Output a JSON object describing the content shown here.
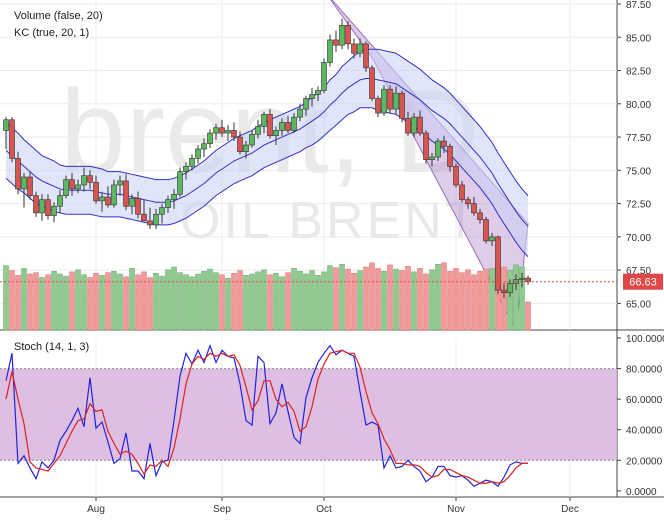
{
  "chart_data": [
    {
      "type": "candlestick",
      "symbol": "brent",
      "watermark": "brent, D",
      "watermark_sub": "OIL BRENT",
      "indicators": [
        "Volume (false, 20)",
        "KC (true, 20, 1)"
      ],
      "x_ticks": [
        "Aug",
        "Sep",
        "Oct",
        "Nov",
        "Dec"
      ],
      "y_ticks": [
        "65.00",
        "67.50",
        "70.00",
        "72.50",
        "75.00",
        "77.50",
        "80.00",
        "82.50",
        "85.00",
        "87.50"
      ],
      "ylim": [
        63.0,
        87.8
      ],
      "last_price": "66.63",
      "colors": {
        "up": "#5cb85c",
        "down": "#d9534f",
        "kc_line": "#3030c8",
        "kc_fill": "#c9d0f4",
        "channel": "#b58fce",
        "volume_up": "#8fca8f",
        "volume_down": "#f29a9a",
        "price_tag": "#e04848"
      },
      "candles": [
        [
          78.0,
          79.0,
          76.6,
          78.8
        ],
        [
          78.8,
          79.0,
          75.6,
          75.9
        ],
        [
          75.9,
          76.4,
          73.2,
          73.6
        ],
        [
          73.6,
          74.8,
          72.2,
          74.5
        ],
        [
          74.5,
          74.9,
          72.8,
          73.1
        ],
        [
          73.1,
          73.4,
          71.5,
          71.8
        ],
        [
          71.8,
          73.2,
          71.2,
          72.8
        ],
        [
          72.8,
          73.2,
          71.3,
          71.6
        ],
        [
          71.6,
          72.6,
          71.1,
          72.3
        ],
        [
          72.3,
          73.5,
          71.8,
          73.1
        ],
        [
          73.1,
          74.6,
          72.9,
          74.3
        ],
        [
          74.3,
          74.8,
          73.1,
          73.6
        ],
        [
          73.6,
          74.3,
          73.3,
          73.9
        ],
        [
          73.9,
          75.2,
          73.4,
          74.6
        ],
        [
          74.6,
          75.0,
          73.6,
          74.1
        ],
        [
          74.1,
          74.6,
          72.5,
          72.7
        ],
        [
          72.7,
          73.4,
          71.9,
          73.0
        ],
        [
          73.0,
          73.8,
          72.2,
          72.4
        ],
        [
          72.4,
          74.3,
          72.2,
          73.9
        ],
        [
          73.9,
          74.6,
          73.1,
          74.2
        ],
        [
          74.2,
          74.7,
          72.0,
          72.3
        ],
        [
          72.3,
          73.2,
          71.7,
          72.9
        ],
        [
          72.9,
          73.4,
          71.4,
          71.7
        ],
        [
          71.7,
          72.8,
          71.2,
          71.2
        ],
        [
          71.2,
          72.2,
          70.6,
          70.9
        ],
        [
          70.9,
          72.1,
          70.6,
          71.7
        ],
        [
          71.7,
          72.5,
          71.0,
          72.2
        ],
        [
          72.2,
          73.1,
          71.8,
          72.8
        ],
        [
          72.8,
          73.6,
          72.1,
          73.2
        ],
        [
          73.2,
          75.2,
          73.0,
          74.9
        ],
        [
          74.9,
          75.6,
          74.3,
          75.3
        ],
        [
          75.3,
          76.2,
          75.0,
          75.9
        ],
        [
          75.9,
          76.9,
          75.5,
          76.6
        ],
        [
          76.6,
          77.4,
          76.0,
          77.0
        ],
        [
          77.0,
          78.1,
          76.7,
          77.8
        ],
        [
          77.8,
          78.5,
          77.3,
          78.2
        ],
        [
          78.2,
          78.8,
          77.5,
          77.8
        ],
        [
          77.8,
          78.4,
          77.2,
          78.0
        ],
        [
          78.0,
          78.6,
          77.2,
          77.5
        ],
        [
          77.5,
          77.9,
          76.2,
          76.4
        ],
        [
          76.4,
          77.2,
          75.9,
          76.9
        ],
        [
          76.9,
          78.0,
          76.7,
          77.7
        ],
        [
          77.7,
          78.8,
          77.4,
          78.3
        ],
        [
          78.3,
          79.4,
          77.8,
          79.2
        ],
        [
          79.2,
          79.6,
          77.4,
          77.6
        ],
        [
          77.6,
          78.3,
          76.9,
          78.0
        ],
        [
          78.0,
          78.9,
          77.6,
          78.6
        ],
        [
          78.6,
          79.1,
          77.8,
          78.0
        ],
        [
          78.0,
          79.3,
          77.8,
          79.0
        ],
        [
          79.0,
          80.0,
          78.7,
          79.6
        ],
        [
          79.6,
          80.6,
          79.1,
          80.4
        ],
        [
          80.4,
          81.2,
          79.8,
          80.7
        ],
        [
          80.7,
          81.3,
          80.2,
          81.0
        ],
        [
          81.0,
          83.4,
          80.8,
          83.1
        ],
        [
          83.1,
          85.2,
          82.8,
          84.8
        ],
        [
          84.8,
          85.5,
          83.9,
          84.4
        ],
        [
          84.4,
          86.4,
          84.1,
          85.9
        ],
        [
          85.9,
          86.2,
          84.1,
          84.5
        ],
        [
          84.5,
          84.9,
          83.4,
          83.8
        ],
        [
          83.8,
          84.9,
          83.5,
          84.5
        ],
        [
          84.5,
          84.7,
          82.4,
          82.7
        ],
        [
          82.7,
          82.9,
          80.2,
          80.4
        ],
        [
          80.4,
          80.6,
          79.0,
          79.3
        ],
        [
          79.3,
          81.4,
          79.1,
          81.1
        ],
        [
          81.1,
          81.4,
          79.3,
          79.6
        ],
        [
          79.6,
          81.3,
          79.2,
          80.8
        ],
        [
          80.8,
          81.0,
          78.6,
          78.9
        ],
        [
          78.9,
          79.4,
          77.6,
          77.8
        ],
        [
          77.8,
          79.3,
          77.5,
          79.0
        ],
        [
          79.0,
          79.5,
          77.6,
          77.8
        ],
        [
          77.8,
          78.0,
          75.5,
          75.8
        ],
        [
          75.8,
          76.3,
          75.3,
          76.0
        ],
        [
          76.0,
          77.4,
          75.7,
          77.2
        ],
        [
          77.2,
          77.6,
          76.3,
          76.8
        ],
        [
          76.8,
          77.0,
          74.9,
          75.3
        ],
        [
          75.3,
          75.5,
          73.7,
          73.9
        ],
        [
          73.9,
          74.2,
          72.6,
          72.8
        ],
        [
          72.8,
          73.0,
          72.1,
          72.5
        ],
        [
          72.5,
          73.0,
          71.6,
          71.8
        ],
        [
          71.8,
          72.1,
          71.0,
          71.3
        ],
        [
          71.3,
          71.5,
          69.5,
          69.7
        ],
        [
          69.7,
          70.3,
          69.3,
          70.0
        ],
        [
          70.0,
          70.1,
          65.7,
          66.0
        ],
        [
          66.0,
          66.5,
          65.4,
          65.8
        ],
        [
          65.8,
          66.8,
          65.5,
          66.5
        ],
        [
          66.5,
          67.2,
          66.0,
          66.8
        ],
        [
          66.8,
          67.3,
          66.2,
          66.9
        ],
        [
          66.9,
          67.1,
          66.4,
          66.63
        ]
      ],
      "volume": [
        92,
        85,
        78,
        88,
        80,
        82,
        75,
        79,
        84,
        80,
        77,
        83,
        86,
        79,
        75,
        81,
        78,
        82,
        84,
        80,
        76,
        88,
        79,
        83,
        75,
        81,
        77,
        86,
        90,
        82,
        79,
        76,
        80,
        84,
        87,
        82,
        79,
        74,
        81,
        85,
        78,
        80,
        83,
        86,
        79,
        81,
        76,
        82,
        88,
        84,
        80,
        85,
        78,
        83,
        92,
        89,
        94,
        87,
        81,
        85,
        90,
        96,
        88,
        84,
        93,
        87,
        85,
        91,
        83,
        88,
        80,
        86,
        94,
        96,
        84,
        88,
        82,
        86,
        79,
        84,
        87,
        88,
        98,
        90,
        85,
        93,
        90,
        40
      ],
      "kc_mid": [
        76.5,
        76.1,
        75.7,
        75.3,
        74.9,
        74.5,
        74.2,
        74.0,
        73.8,
        73.6,
        73.5,
        73.5,
        73.5,
        73.5,
        73.5,
        73.4,
        73.3,
        73.2,
        73.2,
        73.2,
        73.1,
        73.0,
        72.9,
        72.8,
        72.7,
        72.6,
        72.6,
        72.6,
        72.7,
        72.9,
        73.1,
        73.4,
        73.7,
        74.0,
        74.4,
        74.8,
        75.1,
        75.4,
        75.7,
        75.9,
        76.1,
        76.3,
        76.6,
        76.9,
        77.1,
        77.3,
        77.5,
        77.7,
        77.9,
        78.1,
        78.4,
        78.7,
        79.0,
        79.4,
        79.9,
        80.3,
        80.8,
        81.2,
        81.5,
        81.8,
        81.9,
        81.9,
        81.8,
        81.7,
        81.6,
        81.5,
        81.2,
        80.9,
        80.6,
        80.3,
        79.9,
        79.5,
        79.2,
        78.9,
        78.5,
        78.0,
        77.5,
        77.0,
        76.5,
        76.0,
        75.4,
        74.8,
        74.0,
        73.3,
        72.6,
        71.9,
        71.3,
        70.8
      ],
      "kc_width": [
        2.1,
        2.1,
        2.1,
        2.0,
        2.0,
        2.0,
        1.9,
        1.9,
        1.9,
        1.8,
        1.8,
        1.8,
        1.8,
        1.8,
        1.8,
        1.8,
        1.8,
        1.7,
        1.7,
        1.7,
        1.7,
        1.7,
        1.7,
        1.7,
        1.7,
        1.7,
        1.7,
        1.7,
        1.7,
        1.7,
        1.7,
        1.7,
        1.7,
        1.7,
        1.7,
        1.7,
        1.7,
        1.7,
        1.7,
        1.7,
        1.7,
        1.7,
        1.7,
        1.7,
        1.7,
        1.7,
        1.7,
        1.7,
        1.7,
        1.7,
        1.7,
        1.8,
        1.8,
        1.8,
        1.9,
        1.9,
        2.0,
        2.0,
        2.1,
        2.1,
        2.2,
        2.2,
        2.3,
        2.3,
        2.3,
        2.3,
        2.3,
        2.3,
        2.3,
        2.3,
        2.3,
        2.3,
        2.3,
        2.3,
        2.3,
        2.3,
        2.3,
        2.3,
        2.3,
        2.3,
        2.3,
        2.3,
        2.3,
        2.3,
        2.3,
        2.3,
        2.3,
        2.3
      ],
      "channel": {
        "upper": [
          [
            53,
            88.5
          ],
          [
            87,
            71.0
          ]
        ],
        "lower": [
          [
            61,
            83.5
          ],
          [
            85,
            63.0
          ]
        ]
      }
    },
    {
      "type": "line",
      "title": "Stoch (14, 1, 3)",
      "ylim": [
        -4,
        100
      ],
      "y_ticks": [
        "0.0000",
        "20.0000",
        "40.0000",
        "60.0000",
        "80.0000",
        "100.0000"
      ],
      "bands": {
        "upper": 80,
        "lower": 20
      },
      "series": [
        {
          "color": "#2222dd",
          "values": [
            72,
            90,
            18,
            23,
            15,
            8,
            19,
            15,
            20,
            33,
            39,
            46,
            54,
            42,
            74,
            41,
            45,
            32,
            18,
            21,
            38,
            13,
            13,
            8,
            31,
            10,
            19,
            20,
            46,
            75,
            90,
            83,
            92,
            84,
            95,
            84,
            92,
            88,
            87,
            70,
            46,
            43,
            88,
            84,
            44,
            51,
            70,
            52,
            35,
            31,
            61,
            74,
            84,
            90,
            95,
            89,
            92,
            90,
            88,
            65,
            43,
            45,
            43,
            15,
            23,
            15,
            16,
            20,
            16,
            13,
            6,
            9,
            16,
            16,
            10,
            9,
            10,
            7,
            3,
            5,
            7,
            6,
            3,
            9,
            17,
            19,
            18,
            18
          ]
        },
        {
          "color": "#dd2222",
          "values": [
            60,
            78,
            60,
            44,
            19,
            15,
            14,
            13,
            18,
            23,
            31,
            39,
            46,
            47,
            57,
            52,
            53,
            39,
            31,
            24,
            26,
            24,
            18,
            11,
            17,
            16,
            20,
            16,
            28,
            47,
            70,
            83,
            88,
            86,
            90,
            88,
            90,
            88,
            89,
            82,
            68,
            53,
            59,
            72,
            72,
            60,
            55,
            58,
            52,
            39,
            42,
            55,
            73,
            83,
            90,
            91,
            92,
            90,
            90,
            81,
            65,
            51,
            44,
            34,
            27,
            18,
            18,
            17,
            17,
            16,
            12,
            9,
            10,
            14,
            14,
            12,
            10,
            9,
            7,
            5,
            5,
            6,
            5,
            6,
            10,
            15,
            18,
            18
          ]
        }
      ]
    }
  ]
}
